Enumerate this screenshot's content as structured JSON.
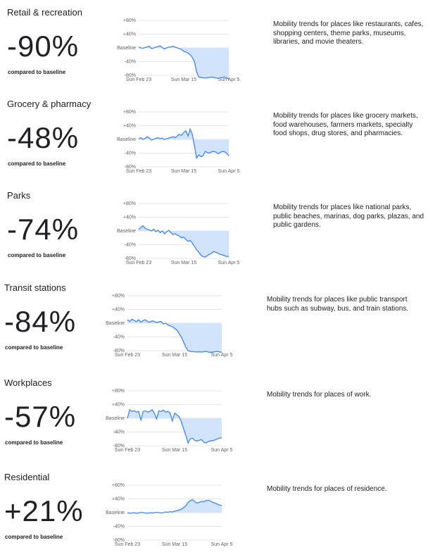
{
  "chart_data": [
    {
      "type": "line",
      "title": "Retail & recreation",
      "headline": "-90%",
      "subtitle": "compared to baseline",
      "description": "Mobility trends for places like restaurants, cafes, shopping centers, theme parks, museums, libraries, and movie theaters.",
      "categories": [
        "Sun Feb 23",
        null,
        null,
        null,
        null,
        null,
        null,
        null,
        null,
        null,
        null,
        null,
        null,
        null,
        null,
        null,
        null,
        null,
        null,
        null,
        null,
        "Sun Mar 15",
        null,
        null,
        null,
        null,
        null,
        null,
        null,
        null,
        null,
        null,
        null,
        null,
        null,
        null,
        null,
        null,
        null,
        null,
        null,
        null,
        "Sun Apr 5"
      ],
      "series": [
        {
          "color": "#4285f4",
          "values": [
            2,
            0,
            -1,
            1,
            3,
            5,
            -2,
            0,
            2,
            4,
            6,
            1,
            -3,
            0,
            2,
            3,
            5,
            2,
            0,
            -2,
            -5,
            -10,
            -12,
            -15,
            -20,
            -28,
            -40,
            -70,
            -85,
            -86,
            -87,
            -88,
            -87,
            -86,
            -85,
            -86,
            -88,
            -89,
            -87,
            -86,
            -85,
            -88,
            -90
          ]
        }
      ],
      "fill_color": "#d2e3fc",
      "ylim": [
        -80,
        80
      ],
      "yticks": [
        {
          "value": 80,
          "label": "+80%"
        },
        {
          "value": 40,
          "label": "+40%"
        },
        {
          "value": 0,
          "label": "Baseline"
        },
        {
          "value": -40,
          "label": "-40%"
        },
        {
          "value": -80,
          "label": "-80%"
        }
      ],
      "grid": true
    },
    {
      "type": "line",
      "title": "Grocery & pharmacy",
      "headline": "-48%",
      "subtitle": "compared to baseline",
      "description": "Mobility trends for places like grocery markets, food warehouses, farmers markets, specialty food shops, drug stores, and pharmacies.",
      "categories": [
        "Sun Feb 23",
        null,
        null,
        null,
        null,
        null,
        null,
        null,
        null,
        null,
        null,
        null,
        null,
        null,
        null,
        null,
        null,
        null,
        null,
        null,
        null,
        "Sun Mar 15",
        null,
        null,
        null,
        null,
        null,
        null,
        null,
        null,
        null,
        null,
        null,
        null,
        null,
        null,
        null,
        null,
        null,
        null,
        null,
        null,
        "Sun Apr 5"
      ],
      "series": [
        {
          "color": "#4285f4",
          "values": [
            2,
            5,
            0,
            3,
            8,
            4,
            -2,
            1,
            3,
            5,
            2,
            4,
            0,
            2,
            4,
            6,
            8,
            5,
            10,
            15,
            12,
            20,
            25,
            10,
            30,
            15,
            -20,
            -55,
            -45,
            -50,
            -48,
            -35,
            -38,
            -40,
            -36,
            -35,
            -37,
            -42,
            -38,
            -35,
            -36,
            -40,
            -48
          ]
        }
      ],
      "fill_color": "#d2e3fc",
      "ylim": [
        -80,
        80
      ],
      "yticks": [
        {
          "value": 80,
          "label": "+80%"
        },
        {
          "value": 40,
          "label": "+40%"
        },
        {
          "value": 0,
          "label": "Baseline"
        },
        {
          "value": -40,
          "label": "-40%"
        },
        {
          "value": -80,
          "label": "-80%"
        }
      ],
      "grid": true
    },
    {
      "type": "line",
      "title": "Parks",
      "headline": "-74%",
      "subtitle": "compared to baseline",
      "description": "Mobility trends for places like national parks, public beaches, marinas, dog parks, plazas, and public gardens.",
      "categories": [
        "Sun Feb 23",
        null,
        null,
        null,
        null,
        null,
        null,
        null,
        null,
        null,
        null,
        null,
        null,
        null,
        null,
        null,
        null,
        null,
        null,
        null,
        null,
        "Sun Mar 15",
        null,
        null,
        null,
        null,
        null,
        null,
        null,
        null,
        null,
        null,
        null,
        null,
        null,
        null,
        null,
        null,
        null,
        null,
        null,
        null,
        "Sun Apr 5"
      ],
      "series": [
        {
          "color": "#4285f4",
          "values": [
            5,
            10,
            15,
            8,
            5,
            3,
            0,
            5,
            -2,
            2,
            -5,
            0,
            -8,
            -3,
            2,
            -5,
            -10,
            -8,
            -12,
            -15,
            -20,
            -18,
            -25,
            -30,
            -28,
            -35,
            -45,
            -55,
            -62,
            -70,
            -75,
            -76,
            -72,
            -68,
            -65,
            -60,
            -62,
            -65,
            -68,
            -70,
            -72,
            -74,
            -74
          ]
        }
      ],
      "fill_color": "#d2e3fc",
      "ylim": [
        -80,
        80
      ],
      "yticks": [
        {
          "value": 80,
          "label": "+80%"
        },
        {
          "value": 40,
          "label": "+40%"
        },
        {
          "value": 0,
          "label": "Baseline"
        },
        {
          "value": -40,
          "label": "-40%"
        },
        {
          "value": -80,
          "label": "-80%"
        }
      ],
      "grid": true
    },
    {
      "type": "line",
      "title": "Transit stations",
      "headline": "-84%",
      "subtitle": "compared to baseline",
      "description": "Mobility trends for places like public transport hubs such as subway, bus, and train stations.",
      "categories": [
        "Sun Feb 23",
        null,
        null,
        null,
        null,
        null,
        null,
        null,
        null,
        null,
        null,
        null,
        null,
        null,
        null,
        null,
        null,
        null,
        null,
        null,
        null,
        "Sun Mar 15",
        null,
        null,
        null,
        null,
        null,
        null,
        null,
        null,
        null,
        null,
        null,
        null,
        null,
        null,
        null,
        null,
        null,
        null,
        null,
        null,
        "Sun Apr 5"
      ],
      "series": [
        {
          "color": "#4285f4",
          "values": [
            10,
            5,
            12,
            8,
            5,
            10,
            3,
            8,
            10,
            5,
            3,
            7,
            5,
            2,
            4,
            5,
            -2,
            0,
            -5,
            -8,
            -10,
            -15,
            -20,
            -30,
            -40,
            -55,
            -70,
            -80,
            -82,
            -83,
            -83,
            -84,
            -83,
            -84,
            -83,
            -82,
            -84,
            -85,
            -84,
            -83,
            -82,
            -84,
            -84
          ]
        }
      ],
      "fill_color": "#d2e3fc",
      "ylim": [
        -80,
        80
      ],
      "yticks": [
        {
          "value": 80,
          "label": "+80%"
        },
        {
          "value": 40,
          "label": "+40%"
        },
        {
          "value": 0,
          "label": "Baseline"
        },
        {
          "value": -40,
          "label": "-40%"
        },
        {
          "value": -80,
          "label": "-80%"
        }
      ],
      "grid": true
    },
    {
      "type": "line",
      "title": "Workplaces",
      "headline": "-57%",
      "subtitle": "compared to baseline",
      "description": "Mobility trends for places of work.",
      "categories": [
        "Sun Feb 23",
        null,
        null,
        null,
        null,
        null,
        null,
        null,
        null,
        null,
        null,
        null,
        null,
        null,
        null,
        null,
        null,
        null,
        null,
        null,
        null,
        "Sun Mar 15",
        null,
        null,
        null,
        null,
        null,
        null,
        null,
        null,
        null,
        null,
        null,
        null,
        null,
        null,
        null,
        null,
        null,
        null,
        null,
        null,
        "Sun Apr 5"
      ],
      "series": [
        {
          "color": "#4285f4",
          "values": [
            0,
            25,
            20,
            22,
            18,
            20,
            -5,
            20,
            22,
            18,
            20,
            25,
            15,
            -2,
            22,
            20,
            24,
            18,
            20,
            15,
            -8,
            15,
            10,
            5,
            -10,
            -30,
            -50,
            -72,
            -60,
            -58,
            -65,
            -66,
            -64,
            -62,
            -70,
            -72,
            -68,
            -66,
            -65,
            -63,
            -60,
            -58,
            -57
          ]
        }
      ],
      "fill_color": "#d2e3fc",
      "ylim": [
        -80,
        80
      ],
      "yticks": [
        {
          "value": 80,
          "label": "+80%"
        },
        {
          "value": 40,
          "label": "+40%"
        },
        {
          "value": 0,
          "label": "Baseline"
        },
        {
          "value": -40,
          "label": "-40%"
        },
        {
          "value": -80,
          "label": "-80%"
        }
      ],
      "grid": true
    },
    {
      "type": "line",
      "title": "Residential",
      "headline": "+21%",
      "subtitle": "compared to baseline",
      "description": "Mobility trends for places of residence.",
      "categories": [
        "Sun Feb 23",
        null,
        null,
        null,
        null,
        null,
        null,
        null,
        null,
        null,
        null,
        null,
        null,
        null,
        null,
        null,
        null,
        null,
        null,
        null,
        null,
        "Sun Mar 15",
        null,
        null,
        null,
        null,
        null,
        null,
        null,
        null,
        null,
        null,
        null,
        null,
        null,
        null,
        null,
        null,
        null,
        null,
        null,
        null,
        "Sun Apr 5"
      ],
      "series": [
        {
          "color": "#4285f4",
          "values": [
            0,
            -2,
            -1,
            0,
            -2,
            -1,
            1,
            0,
            -1,
            -2,
            0,
            -1,
            0,
            1,
            0,
            -1,
            0,
            2,
            1,
            3,
            2,
            4,
            6,
            8,
            10,
            15,
            20,
            30,
            35,
            38,
            32,
            28,
            30,
            33,
            32,
            35,
            36,
            34,
            30,
            28,
            25,
            22,
            21
          ]
        }
      ],
      "fill_color": "#d2e3fc",
      "ylim": [
        -80,
        80
      ],
      "yticks": [
        {
          "value": 80,
          "label": "+80%"
        },
        {
          "value": 40,
          "label": "+40%"
        },
        {
          "value": 0,
          "label": "Baseline"
        },
        {
          "value": -40,
          "label": "-40%"
        },
        {
          "value": -80,
          "label": "-80%"
        }
      ],
      "grid": true
    }
  ]
}
